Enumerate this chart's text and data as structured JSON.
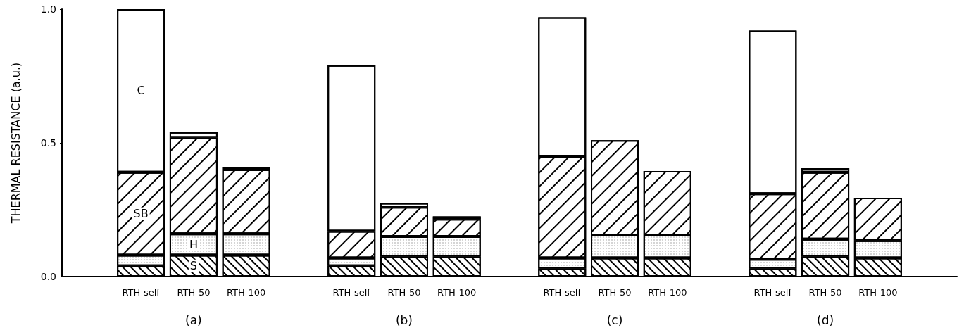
{
  "chart_data": {
    "type": "bar",
    "stacked": true,
    "ylabel": "THERMAL RESISTANCE (a.u.)",
    "categories": [
      "RTH-self",
      "RTH-50",
      "RTH-100",
      "RTH-self",
      "RTH-50",
      "RTH-100",
      "RTH-self",
      "RTH-50",
      "RTH-100",
      "RTH-self",
      "RTH-50",
      "RTH-100"
    ],
    "series": [
      {
        "name": "S",
        "color": "#ffffff",
        "values": [
          0.04,
          0.08,
          0.08,
          0.04,
          0.075,
          0.075,
          0.03,
          0.07,
          0.07,
          0.03,
          0.075,
          0.07
        ]
      },
      {
        "name": "H",
        "color": "#ffffff",
        "values": [
          0.04,
          0.08,
          0.08,
          0.03,
          0.075,
          0.075,
          0.04,
          0.085,
          0.085,
          0.035,
          0.065,
          0.065
        ]
      },
      {
        "name": "SB",
        "color": "#ffffff",
        "values": [
          0.31,
          0.36,
          0.24,
          0.1,
          0.11,
          0.065,
          0.38,
          0.355,
          0.24,
          0.245,
          0.25,
          0.16
        ]
      },
      {
        "name": "C",
        "color": "#ffffff",
        "values": [
          0.61,
          0.02,
          0.01,
          0.62,
          0.015,
          0.01,
          0.52,
          null,
          null,
          0.61,
          0.015,
          null
        ]
      }
    ],
    "ylim": [
      0,
      1
    ],
    "yticks": [
      {
        "value": 0,
        "label": "0.0"
      },
      {
        "value": 0.5,
        "label": "0.5"
      },
      {
        "value": 1,
        "label": "1.0"
      }
    ],
    "grid": false,
    "legend": false,
    "annotations": [
      "(a)",
      "(b)",
      "(c)",
      "(d)"
    ]
  }
}
